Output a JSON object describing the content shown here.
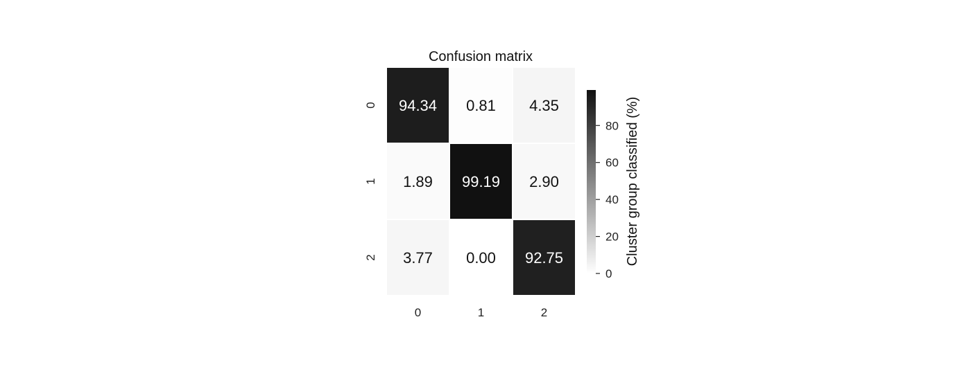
{
  "chart_data": {
    "type": "heatmap",
    "title": "Confusion matrix",
    "x_categories": [
      "0",
      "1",
      "2"
    ],
    "y_categories": [
      "0",
      "1",
      "2"
    ],
    "values": [
      [
        94.34,
        0.81,
        4.35
      ],
      [
        1.89,
        99.19,
        2.9
      ],
      [
        3.77,
        0.0,
        92.75
      ]
    ],
    "value_labels": [
      [
        "94.34",
        "0.81",
        "4.35"
      ],
      [
        "1.89",
        "99.19",
        "2.90"
      ],
      [
        "3.77",
        "0.00",
        "92.75"
      ]
    ],
    "colormap": {
      "low": "#ffffff",
      "high": "#111111"
    },
    "colorbar": {
      "label": "Cluster group classified (%)",
      "range": [
        0,
        99.19
      ],
      "ticks": [
        0,
        20,
        40,
        60,
        80
      ],
      "tick_labels": [
        "0",
        "20",
        "40",
        "60",
        "80"
      ]
    },
    "grid": false
  }
}
